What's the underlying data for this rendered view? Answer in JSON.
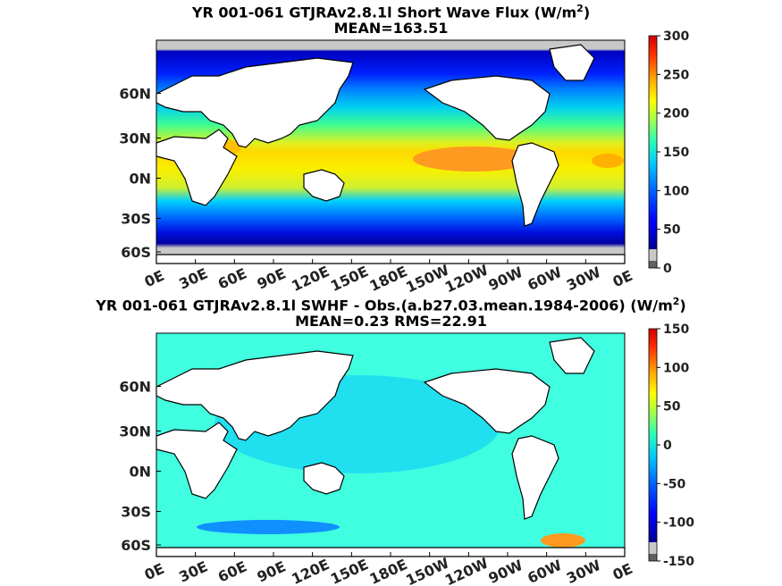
{
  "panels": [
    {
      "title_prefix": "YR 001-061 GTJRAv2.8.1l  Short Wave Flux (W/m",
      "title_sup": "2",
      "title_suffix": ")",
      "stat_line": "MEAN=163.51"
    },
    {
      "title_prefix": "YR 001-061 GTJRAv2.8.1l SWHF - Obs.(a.b27.03.mean.1984-2006) (W/m",
      "title_sup": "2",
      "title_suffix": ")",
      "stat_line": "MEAN=0.23 RMS=22.91"
    }
  ],
  "chart_data": [
    {
      "type": "heatmap",
      "title": "YR 001-061 GTJRAv2.8.1l  Short Wave Flux (W/m2)",
      "subtitle": "MEAN=163.51",
      "x_tick_labels": [
        "0E",
        "30E",
        "60E",
        "90E",
        "120E",
        "150E",
        "180E",
        "150W",
        "120W",
        "90W",
        "60W",
        "30W",
        "0E"
      ],
      "y_tick_labels": [
        "60N",
        "30N",
        "0N",
        "30S",
        "60S"
      ],
      "colorbar": {
        "ticks": [
          0,
          50,
          100,
          150,
          200,
          250,
          300
        ],
        "range": [
          0,
          300
        ]
      },
      "zonal_pattern_values": {
        "lat": [
          80,
          60,
          40,
          20,
          0,
          -20,
          -40,
          -60,
          -80
        ],
        "value": [
          20,
          90,
          160,
          200,
          235,
          220,
          160,
          80,
          20
        ]
      },
      "notable_region": {
        "label": "eastern tropical Pacific maximum",
        "value": 260
      }
    },
    {
      "type": "heatmap",
      "title": "YR 001-061 GTJRAv2.8.1l SWHF - Obs.(a.b27.03.mean.1984-2006) (W/m2)",
      "subtitle": "MEAN=0.23 RMS=22.91",
      "x_tick_labels": [
        "0E",
        "30E",
        "60E",
        "90E",
        "120E",
        "150E",
        "180E",
        "150W",
        "120W",
        "90W",
        "60W",
        "30W",
        "0E"
      ],
      "y_tick_labels": [
        "60N",
        "30N",
        "0N",
        "30S",
        "60S"
      ],
      "colorbar": {
        "ticks": [
          -150,
          -100,
          -50,
          0,
          50,
          100,
          150
        ],
        "range": [
          -150,
          150
        ]
      },
      "mean": 0.23,
      "rms": 22.91
    }
  ],
  "colors": {
    "land": "#ffffff",
    "missing": "#c8c8c8",
    "colormap": [
      "#000090",
      "#0000ff",
      "#0060ff",
      "#00b0ff",
      "#00e8e8",
      "#40ff80",
      "#c0ff40",
      "#ffff00",
      "#ffc000",
      "#ff6000",
      "#e00000"
    ]
  }
}
